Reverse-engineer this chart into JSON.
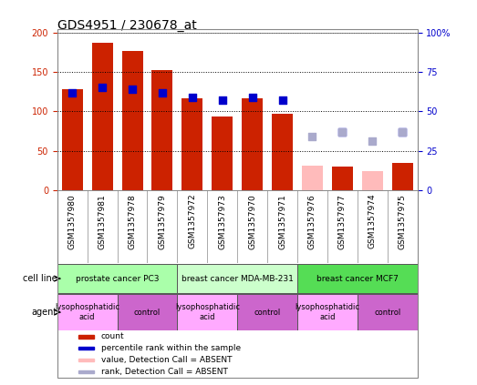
{
  "title": "GDS4951 / 230678_at",
  "samples": [
    "GSM1357980",
    "GSM1357981",
    "GSM1357978",
    "GSM1357979",
    "GSM1357972",
    "GSM1357973",
    "GSM1357970",
    "GSM1357971",
    "GSM1357976",
    "GSM1357977",
    "GSM1357974",
    "GSM1357975"
  ],
  "count_values": [
    128,
    187,
    177,
    153,
    117,
    93,
    117,
    97,
    null,
    30,
    null,
    35
  ],
  "count_absent": [
    null,
    null,
    null,
    null,
    null,
    null,
    null,
    null,
    31,
    null,
    24,
    null
  ],
  "percentile_values": [
    62,
    65,
    64,
    62,
    59,
    57,
    59,
    57,
    null,
    37,
    null,
    37
  ],
  "percentile_absent": [
    null,
    null,
    null,
    null,
    null,
    null,
    null,
    null,
    34,
    37,
    31,
    37
  ],
  "ylim_left": [
    0,
    200
  ],
  "ylim_right": [
    0,
    100
  ],
  "yticks_left": [
    0,
    50,
    100,
    150,
    200
  ],
  "ytick_labels_left": [
    "0",
    "50",
    "100",
    "150",
    "200"
  ],
  "yticks_right": [
    0,
    25,
    50,
    75,
    100
  ],
  "ytick_labels_right": [
    "0",
    "25",
    "50",
    "75",
    "100%"
  ],
  "bar_color_present": "#cc2200",
  "bar_color_absent": "#ffbbbb",
  "dot_color_present": "#0000cc",
  "dot_color_absent": "#aaaacc",
  "cell_lines": [
    {
      "label": "prostate cancer PC3",
      "start": 0,
      "end": 4,
      "color": "#aaffaa"
    },
    {
      "label": "breast cancer MDA-MB-231",
      "start": 4,
      "end": 8,
      "color": "#ccffcc"
    },
    {
      "label": "breast cancer MCF7",
      "start": 8,
      "end": 12,
      "color": "#55dd55"
    }
  ],
  "agents": [
    {
      "label": "lysophosphatidic\nacid",
      "start": 0,
      "end": 2,
      "color": "#ffaaff"
    },
    {
      "label": "control",
      "start": 2,
      "end": 4,
      "color": "#cc66cc"
    },
    {
      "label": "lysophosphatidic\nacid",
      "start": 4,
      "end": 6,
      "color": "#ffaaff"
    },
    {
      "label": "control",
      "start": 6,
      "end": 8,
      "color": "#cc66cc"
    },
    {
      "label": "lysophosphatidic\nacid",
      "start": 8,
      "end": 10,
      "color": "#ffaaff"
    },
    {
      "label": "control",
      "start": 10,
      "end": 12,
      "color": "#cc66cc"
    }
  ],
  "legend_items": [
    {
      "label": "count",
      "color": "#cc2200"
    },
    {
      "label": "percentile rank within the sample",
      "color": "#0000cc"
    },
    {
      "label": "value, Detection Call = ABSENT",
      "color": "#ffbbbb"
    },
    {
      "label": "rank, Detection Call = ABSENT",
      "color": "#aaaacc"
    }
  ],
  "background_color": "#ffffff",
  "xlabel_bg": "#cccccc",
  "title_fontsize": 10,
  "tick_fontsize": 7,
  "annotation_fontsize": 7.5
}
